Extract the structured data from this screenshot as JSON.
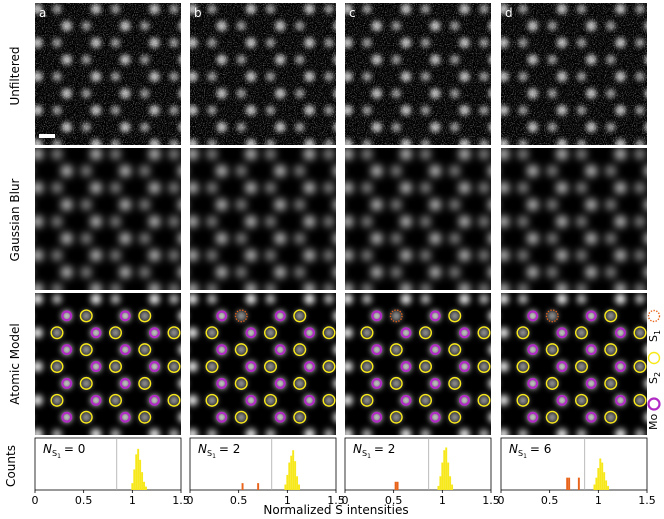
{
  "columns": [
    {
      "letter": "a",
      "label_text": "= 0",
      "n_s1": 0,
      "s1_sites": [],
      "hist": [
        {
          "x": 1.0,
          "c": 10,
          "color": "#f7e81b"
        },
        {
          "x": 1.02,
          "c": 30,
          "color": "#f7e81b"
        },
        {
          "x": 1.04,
          "c": 52,
          "color": "#f7e81b"
        },
        {
          "x": 1.06,
          "c": 60,
          "color": "#f7e81b"
        },
        {
          "x": 1.08,
          "c": 44,
          "color": "#f7e81b"
        },
        {
          "x": 1.1,
          "c": 26,
          "color": "#f7e81b"
        },
        {
          "x": 1.12,
          "c": 12,
          "color": "#f7e81b"
        },
        {
          "x": 1.14,
          "c": 5,
          "color": "#f7e81b"
        }
      ],
      "threshold": 0.84
    },
    {
      "letter": "b",
      "label_text": "= 2",
      "n_s1": 2,
      "s1_sites": [
        [
          0,
          1
        ],
        [
          5,
          5
        ]
      ],
      "hist": [
        {
          "x": 0.54,
          "c": 10,
          "color": "#e8641b"
        },
        {
          "x": 0.7,
          "c": 10,
          "color": "#e8641b"
        },
        {
          "x": 0.98,
          "c": 8,
          "color": "#f7e81b"
        },
        {
          "x": 1.0,
          "c": 22,
          "color": "#f7e81b"
        },
        {
          "x": 1.02,
          "c": 40,
          "color": "#f7e81b"
        },
        {
          "x": 1.04,
          "c": 50,
          "color": "#f7e81b"
        },
        {
          "x": 1.06,
          "c": 58,
          "color": "#f7e81b"
        },
        {
          "x": 1.08,
          "c": 42,
          "color": "#f7e81b"
        },
        {
          "x": 1.1,
          "c": 20,
          "color": "#f7e81b"
        },
        {
          "x": 1.12,
          "c": 8,
          "color": "#f7e81b"
        }
      ],
      "threshold": 0.84
    },
    {
      "letter": "c",
      "label_text": "= 2",
      "n_s1": 2,
      "s1_sites": [
        [
          0,
          1
        ],
        [
          5,
          5
        ]
      ],
      "hist": [
        {
          "x": 0.52,
          "c": 12,
          "color": "#e8641b"
        },
        {
          "x": 0.54,
          "c": 12,
          "color": "#e8641b"
        },
        {
          "x": 0.96,
          "c": 6,
          "color": "#f7e81b"
        },
        {
          "x": 0.98,
          "c": 20,
          "color": "#f7e81b"
        },
        {
          "x": 1.0,
          "c": 40,
          "color": "#f7e81b"
        },
        {
          "x": 1.02,
          "c": 58,
          "color": "#f7e81b"
        },
        {
          "x": 1.04,
          "c": 62,
          "color": "#f7e81b"
        },
        {
          "x": 1.06,
          "c": 40,
          "color": "#f7e81b"
        },
        {
          "x": 1.08,
          "c": 20,
          "color": "#f7e81b"
        },
        {
          "x": 1.1,
          "c": 8,
          "color": "#f7e81b"
        }
      ],
      "threshold": 0.86
    },
    {
      "letter": "d",
      "label_text": "= 6",
      "n_s1": 6,
      "s1_sites": [
        [
          0,
          1
        ],
        [
          2,
          3
        ],
        [
          3,
          2
        ],
        [
          5,
          4
        ],
        [
          5,
          6
        ],
        [
          2,
          6
        ]
      ],
      "hist": [
        {
          "x": 0.68,
          "c": 18,
          "color": "#e8641b"
        },
        {
          "x": 0.7,
          "c": 18,
          "color": "#e8641b"
        },
        {
          "x": 0.8,
          "c": 18,
          "color": "#e8641b"
        },
        {
          "x": 0.96,
          "c": 8,
          "color": "#f7e81b"
        },
        {
          "x": 0.98,
          "c": 18,
          "color": "#f7e81b"
        },
        {
          "x": 1.0,
          "c": 32,
          "color": "#f7e81b"
        },
        {
          "x": 1.02,
          "c": 46,
          "color": "#f7e81b"
        },
        {
          "x": 1.04,
          "c": 40,
          "color": "#f7e81b"
        },
        {
          "x": 1.06,
          "c": 26,
          "color": "#f7e81b"
        },
        {
          "x": 1.08,
          "c": 14,
          "color": "#f7e81b"
        },
        {
          "x": 1.1,
          "c": 6,
          "color": "#f7e81b"
        }
      ],
      "threshold": 0.86
    }
  ],
  "row_labels": {
    "unfiltered": "Unfiltered",
    "gaussian": "Gaussian Blur",
    "atomic": "Atomic Model"
  },
  "hist_axis": {
    "ylabel": "Counts",
    "xlabel": "Normalized S intensities",
    "xlim": [
      0,
      1.5
    ],
    "ticks": [
      {
        "v": 0,
        "label": "0"
      },
      {
        "v": 0.5,
        "label": "0.5"
      },
      {
        "v": 1,
        "label": "1"
      },
      {
        "v": 1.5,
        "label": "1.5"
      }
    ]
  },
  "label_symbol": "N",
  "label_sub": "S",
  "label_subsub": "1",
  "legend": [
    {
      "main": "S",
      "sub": "1",
      "color": "#e8641b",
      "style": "dotted"
    },
    {
      "main": "S",
      "sub": "2",
      "color": "#f7e81b",
      "style": "solid"
    },
    {
      "main": "Mo",
      "sub": "",
      "color": "#b02cc4",
      "style": "solid"
    }
  ],
  "colors": {
    "s1": "#e8641b",
    "s2": "#f7e81b",
    "mo": "#b02cc4",
    "threshold_line": "#aaaaaa"
  }
}
